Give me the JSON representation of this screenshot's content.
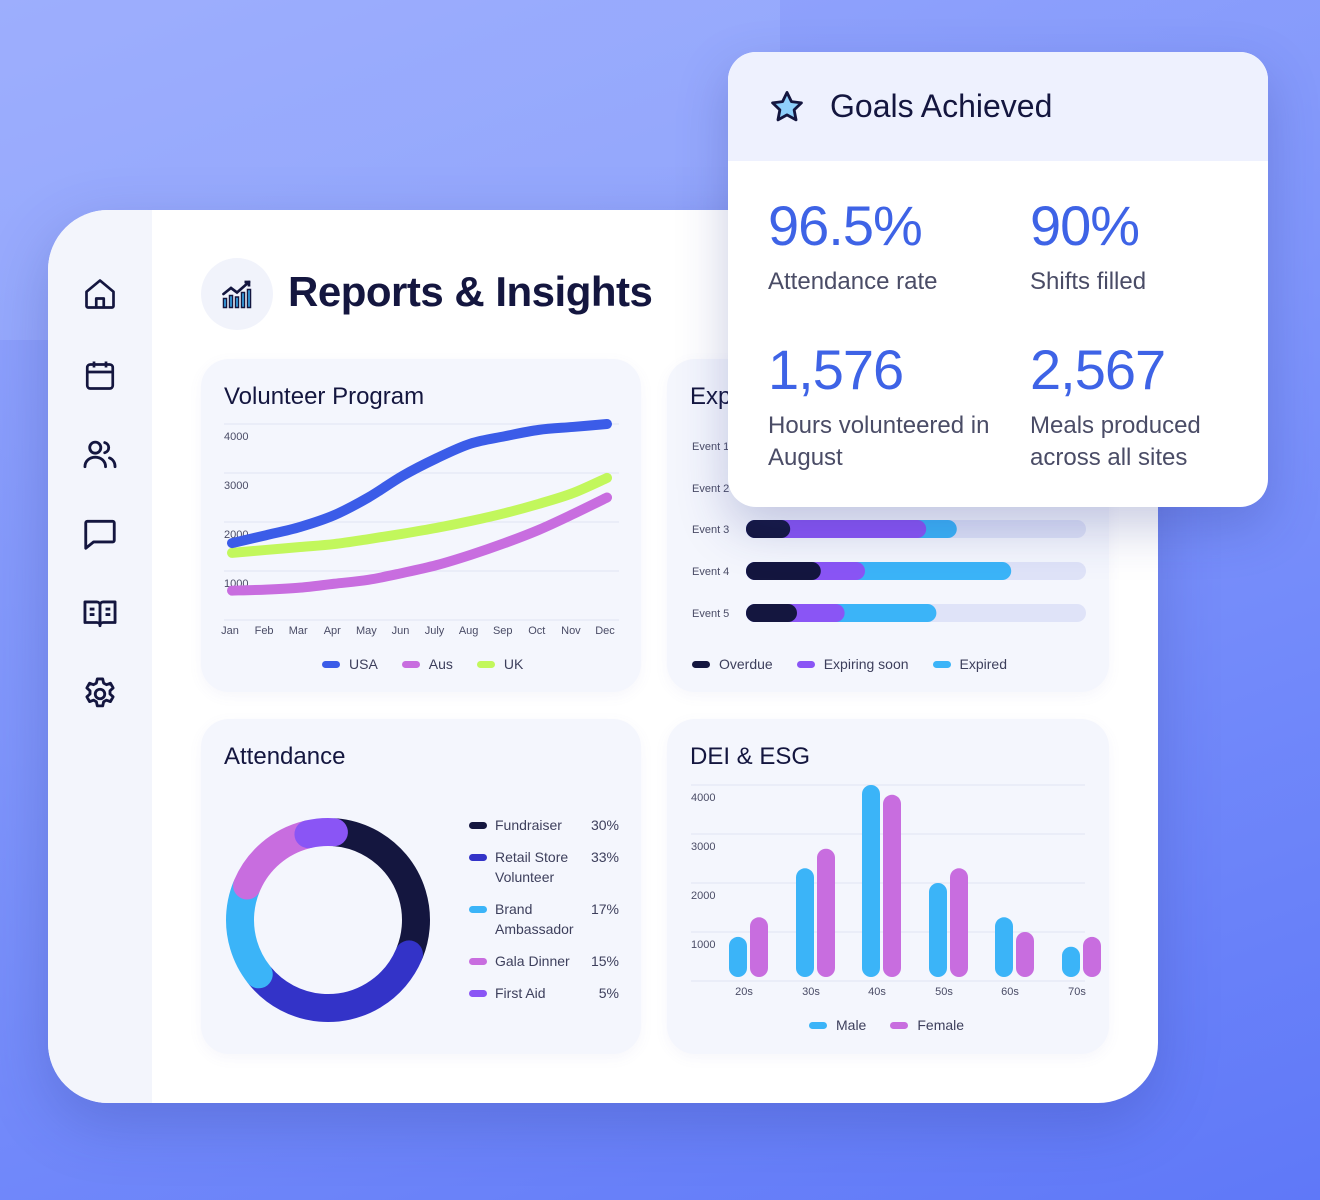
{
  "sidebar": {
    "items": [
      {
        "icon": "home-icon"
      },
      {
        "icon": "calendar-icon"
      },
      {
        "icon": "users-icon"
      },
      {
        "icon": "chat-icon"
      },
      {
        "icon": "book-icon"
      },
      {
        "icon": "settings-icon"
      }
    ]
  },
  "header": {
    "title": "Reports & Insights",
    "icon": "chart-icon"
  },
  "goals": {
    "title": "Goals Achieved",
    "icon": "star-icon",
    "stats": [
      {
        "value": "96.5%",
        "label": "Attendance rate"
      },
      {
        "value": "90%",
        "label": "Shifts filled"
      },
      {
        "value": "1,576",
        "label": "Hours volunteered in August"
      },
      {
        "value": "2,567",
        "label": "Meals produced across all sites"
      }
    ]
  },
  "colors": {
    "accent": "#3e63e6",
    "usa": "#3b5ce8",
    "aus": "#c86ddf",
    "uk": "#c2f75c",
    "overdue": "#14163f",
    "expiring": "#8a55f5",
    "expired": "#3bb4f8",
    "track": "#dfe3f8",
    "male": "#3bb4f8",
    "female": "#c86ddf"
  },
  "chart_data": [
    {
      "type": "line",
      "title": "Volunteer Program",
      "categories": [
        "Jan",
        "Feb",
        "Mar",
        "Apr",
        "May",
        "Jun",
        "July",
        "Aug",
        "Sep",
        "Oct",
        "Nov",
        "Dec"
      ],
      "yticks": [
        1000,
        2000,
        3000,
        4000
      ],
      "ylim": [
        0,
        4000
      ],
      "grid": true,
      "legend": "bottom",
      "series": [
        {
          "name": "USA",
          "color": "#3b5ce8",
          "values": [
            1570,
            1730,
            1900,
            2140,
            2500,
            2940,
            3300,
            3600,
            3750,
            3880,
            3940,
            4000
          ]
        },
        {
          "name": "Aus",
          "color": "#c86ddf",
          "values": [
            600,
            620,
            660,
            740,
            820,
            960,
            1120,
            1330,
            1570,
            1840,
            2160,
            2500
          ]
        },
        {
          "name": "UK",
          "color": "#c2f75c",
          "values": [
            1370,
            1430,
            1490,
            1550,
            1650,
            1760,
            1880,
            2020,
            2180,
            2370,
            2590,
            2900
          ]
        }
      ]
    },
    {
      "type": "bar",
      "title": "Expirations",
      "stacked": true,
      "orientation": "horizontal",
      "unit": "percent",
      "categories": [
        "Event 1",
        "Event 2",
        "Event 3",
        "Event 4",
        "Event 5"
      ],
      "legend": "bottom",
      "series": [
        {
          "name": "Overdue",
          "color": "#14163f",
          "values": [
            null,
            null,
            13,
            22,
            15
          ]
        },
        {
          "name": "Expiring soon",
          "color": "#8a55f5",
          "values": [
            null,
            null,
            40,
            13,
            14
          ]
        },
        {
          "name": "Expired",
          "color": "#3bb4f8",
          "values": [
            null,
            null,
            9,
            43,
            27
          ]
        }
      ]
    },
    {
      "type": "pie",
      "title": "Attendance",
      "donut": true,
      "legend": "right",
      "slices": [
        {
          "label": "Fundraiser",
          "value": 30,
          "display": "30%",
          "color": "#14163f"
        },
        {
          "label": "Retail Store Volunteer",
          "value": 33,
          "display": "33%",
          "color": "#3333c8"
        },
        {
          "label": "Brand Ambassador",
          "value": 17,
          "display": "17%",
          "color": "#3bb4f8"
        },
        {
          "label": "Gala Dinner",
          "value": 15,
          "display": "15%",
          "color": "#c86ddf"
        },
        {
          "label": "First Aid",
          "value": 5,
          "display": "5%",
          "color": "#8a55f5"
        }
      ]
    },
    {
      "type": "bar",
      "title": "DEI & ESG",
      "categories": [
        "20s",
        "30s",
        "40s",
        "50s",
        "60s",
        "70s"
      ],
      "yticks": [
        1000,
        2000,
        3000,
        4000
      ],
      "ylim": [
        0,
        4000
      ],
      "grid": true,
      "legend": "bottom",
      "series": [
        {
          "name": "Male",
          "color": "#3bb4f8",
          "values": [
            900,
            2300,
            4000,
            2000,
            1300,
            700
          ]
        },
        {
          "name": "Female",
          "color": "#c86ddf",
          "values": [
            1300,
            2700,
            3800,
            2300,
            1000,
            900
          ]
        }
      ]
    }
  ]
}
